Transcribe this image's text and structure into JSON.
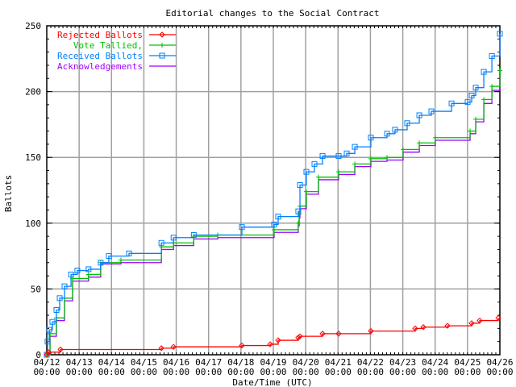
{
  "chart_data": {
    "type": "line",
    "title": "Editorial changes to the Social Contract",
    "xlabel": "Date/Time (UTC)",
    "ylabel": "Ballots",
    "xlim": [
      "04/12 00:00",
      "04/26 00:00"
    ],
    "ylim": [
      0,
      250
    ],
    "yticks": [
      0,
      50,
      100,
      150,
      200,
      250
    ],
    "xticks": [
      {
        "date": "04/12",
        "time": "00:00"
      },
      {
        "date": "04/13",
        "time": "00:00"
      },
      {
        "date": "04/14",
        "time": "00:00"
      },
      {
        "date": "04/15",
        "time": "00:00"
      },
      {
        "date": "04/16",
        "time": "00:00"
      },
      {
        "date": "04/17",
        "time": "00:00"
      },
      {
        "date": "04/18",
        "time": "00:00"
      },
      {
        "date": "04/19",
        "time": "00:00"
      },
      {
        "date": "04/20",
        "time": "00:00"
      },
      {
        "date": "04/21",
        "time": "00:00"
      },
      {
        "date": "04/22",
        "time": "00:00"
      },
      {
        "date": "04/23",
        "time": "00:00"
      },
      {
        "date": "04/24",
        "time": "00:00"
      },
      {
        "date": "04/25",
        "time": "00:00"
      },
      {
        "date": "04/26",
        "time": "00:00"
      }
    ],
    "grid": true,
    "legend_position": "top-left",
    "series": [
      {
        "name": "Rejected Ballots",
        "color": "#ff0000",
        "marker": "diamond",
        "x": [
          "04/12 00:00",
          "04/12 01:10",
          "04/12 10:10",
          "04/15 13:00",
          "04/15 22:00",
          "04/18 00:40",
          "04/18 21:40",
          "04/19 03:35",
          "04/19 18:30",
          "04/19 19:45",
          "04/20 12:30",
          "04/21 00:25",
          "04/22 00:20",
          "04/23 09:15",
          "04/23 15:15",
          "04/24 09:10",
          "04/25 03:05",
          "04/25 09:05",
          "04/25 22:50"
        ],
        "y": [
          0,
          2,
          4,
          5,
          6,
          7,
          8,
          11,
          13,
          14,
          16,
          16,
          18,
          20,
          21,
          22,
          24,
          26,
          28
        ]
      },
      {
        "name": "Vote Tallied,",
        "color": "#00c000",
        "marker": "plus",
        "x": [
          "04/12 00:00",
          "04/12 02:25",
          "04/12 07:10",
          "04/12 13:10",
          "04/12 19:10",
          "04/13 07:00",
          "04/13 16:00",
          "04/14 07:00",
          "04/15 13:00",
          "04/15 22:00",
          "04/16 13:00",
          "04/17 06:45",
          "04/19 00:35",
          "04/19 18:30",
          "04/19 19:10",
          "04/19 19:45",
          "04/20 00:30",
          "04/20 09:30",
          "04/21 00:25",
          "04/21 12:25",
          "04/22 00:20",
          "04/22 12:20",
          "04/23 00:15",
          "04/23 12:15",
          "04/24 00:10",
          "04/25 01:55",
          "04/25 06:05",
          "04/25 12:05",
          "04/25 18:05",
          "04/26 00:00"
        ],
        "y": [
          0,
          16,
          28,
          43,
          58,
          61,
          70,
          72,
          82,
          85,
          90,
          91,
          95,
          100,
          107,
          113,
          124,
          135,
          139,
          145,
          149,
          150,
          156,
          161,
          165,
          170,
          179,
          194,
          204,
          216
        ]
      },
      {
        "name": "Received Ballots",
        "color": "#0080ff",
        "marker": "square",
        "x": [
          "04/12 00:00",
          "04/12 00:35",
          "04/12 01:50",
          "04/12 04:10",
          "04/12 07:10",
          "04/12 09:35",
          "04/12 13:10",
          "04/12 18:00",
          "04/12 22:40",
          "04/13 07:00",
          "04/13 16:00",
          "04/13 22:00",
          "04/14 13:00",
          "04/15 13:00",
          "04/15 22:00",
          "04/16 13:00",
          "04/18 00:40",
          "04/19 00:35",
          "04/19 03:35",
          "04/19 18:30",
          "04/19 19:45",
          "04/20 00:30",
          "04/20 06:30",
          "04/20 12:30",
          "04/21 00:25",
          "04/21 06:25",
          "04/21 12:25",
          "04/22 00:20",
          "04/22 12:20",
          "04/22 18:15",
          "04/23 03:15",
          "04/23 12:15",
          "04/23 21:10",
          "04/24 12:10",
          "04/25 00:05",
          "04/25 03:05",
          "04/25 06:05",
          "04/25 12:05",
          "04/25 18:05",
          "04/26 00:00"
        ],
        "y": [
          0,
          10,
          19,
          25,
          34,
          43,
          52,
          61,
          64,
          65,
          70,
          75,
          77,
          85,
          89,
          91,
          97,
          99,
          105,
          109,
          129,
          139,
          145,
          151,
          151,
          153,
          158,
          165,
          168,
          171,
          176,
          182,
          185,
          191,
          192,
          197,
          203,
          215,
          227,
          244
        ]
      },
      {
        "name": "Acknowledgements",
        "color": "#a000ff",
        "marker": "none",
        "x": [
          "04/12 00:00",
          "04/12 02:25",
          "04/12 07:10",
          "04/12 13:10",
          "04/12 19:10",
          "04/13 07:00",
          "04/13 16:00",
          "04/14 07:00",
          "04/15 13:00",
          "04/15 22:00",
          "04/16 13:00",
          "04/17 06:45",
          "04/19 00:35",
          "04/19 18:30",
          "04/19 19:10",
          "04/19 19:45",
          "04/20 00:30",
          "04/20 09:30",
          "04/21 00:25",
          "04/21 12:25",
          "04/22 00:20",
          "04/22 12:20",
          "04/23 00:15",
          "04/23 12:15",
          "04/24 00:10",
          "04/25 01:55",
          "04/25 06:05",
          "04/25 12:05",
          "04/25 18:05",
          "04/26 00:00"
        ],
        "y": [
          0,
          14,
          26,
          41,
          56,
          59,
          69,
          70,
          80,
          83,
          88,
          89,
          93,
          98,
          104,
          111,
          122,
          133,
          137,
          143,
          147,
          148,
          154,
          159,
          163,
          168,
          177,
          191,
          201,
          213
        ]
      }
    ]
  }
}
